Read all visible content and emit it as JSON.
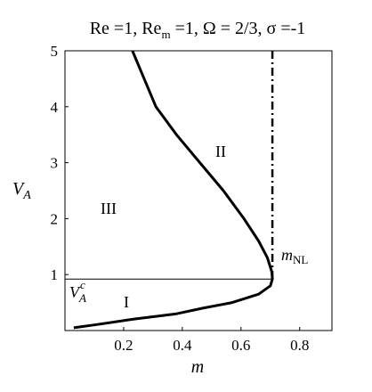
{
  "chart_data": {
    "type": "line",
    "title": [
      "Re =1, Re",
      "m",
      " =1, Ω = 2/3, σ =-1"
    ],
    "xlabel": "m",
    "ylabel": [
      "V",
      "A"
    ],
    "x": [
      0.23,
      0.27,
      0.31,
      0.38,
      0.46,
      0.54,
      0.61,
      0.66,
      0.69,
      0.705,
      0.707,
      0.7,
      0.66,
      0.57,
      0.47,
      0.38,
      0.23,
      0.1,
      0.03
    ],
    "series": [
      {
        "color": "#000000",
        "values": [
          5,
          4.5,
          4,
          3.5,
          3,
          2.5,
          2,
          1.6,
          1.3,
          1.05,
          0.92,
          0.8,
          0.65,
          0.5,
          0.4,
          0.3,
          0.2,
          0.1,
          0.05
        ]
      }
    ],
    "xlim": [
      0,
      0.91
    ],
    "ylim": [
      0,
      5
    ],
    "xticks": [
      0.2,
      0.4,
      0.6,
      0.8
    ],
    "yticks": [
      1,
      2,
      3,
      4,
      5
    ],
    "vline": 0.707,
    "hline": 0.92,
    "annotations": {
      "mNL": [
        "m",
        "NL"
      ],
      "VAc": [
        "V",
        "A",
        "c"
      ],
      "region1": "I",
      "region2": "II",
      "region3": "III"
    }
  }
}
